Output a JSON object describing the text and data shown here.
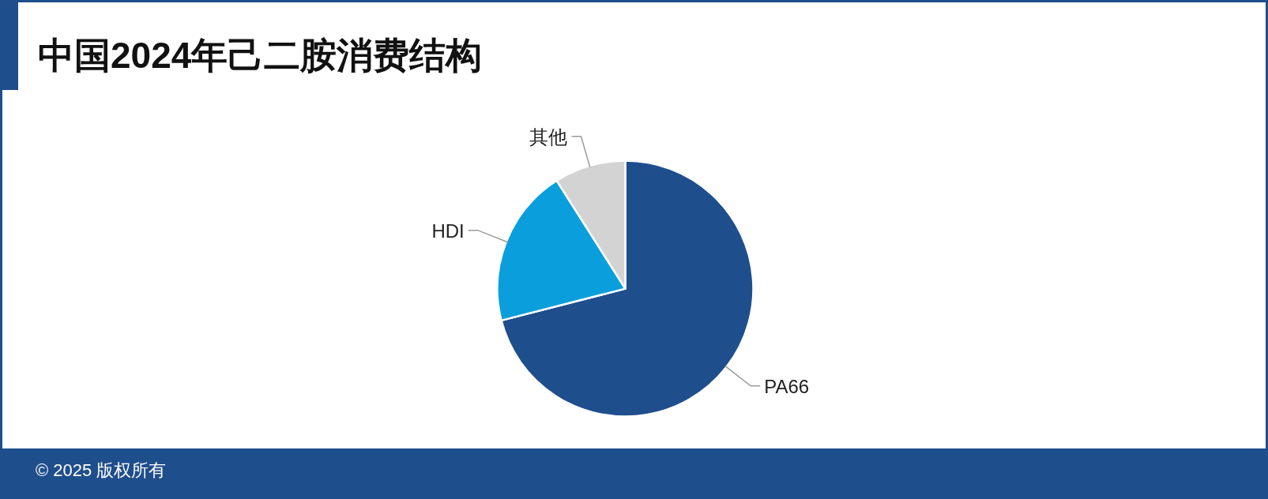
{
  "chart_data": {
    "type": "pie",
    "title": "中国2024年己二胺消费结构",
    "categories": [
      "PA66",
      "HDI",
      "其他"
    ],
    "values": [
      71,
      20,
      9
    ],
    "colors": [
      "#1f4e8c",
      "#0a9fdc",
      "#d3d3d3"
    ],
    "annotations": [
      "© 2025 版权所有"
    ]
  }
}
